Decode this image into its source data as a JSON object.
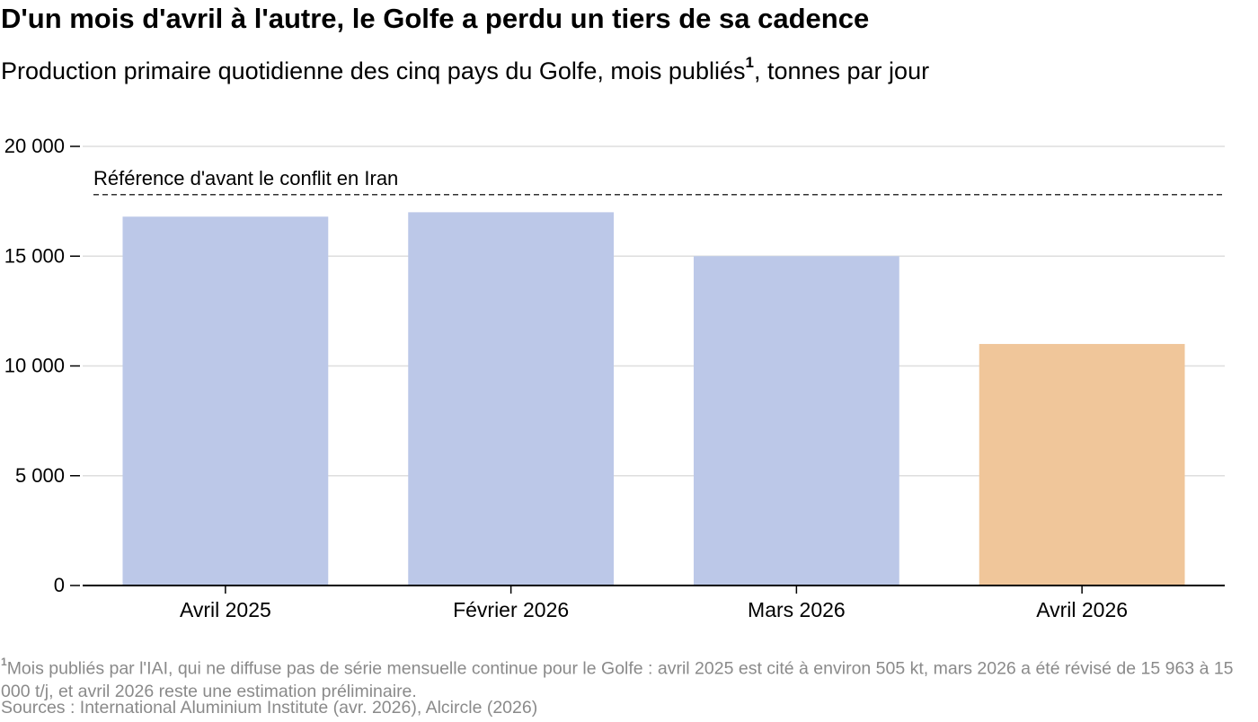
{
  "header": {
    "title": "D'un mois d'avril à l'autre, le Golfe a perdu un tiers de sa cadence",
    "subtitle": "Production primaire quotidienne des cinq pays du Golfe, mois publiés",
    "subtitle_marker": "1",
    "subtitle_unit": ", tonnes par jour"
  },
  "chart_data": {
    "type": "bar",
    "categories": [
      "Avril 2025",
      "Février 2026",
      "Mars 2026",
      "Avril 2026"
    ],
    "values": [
      16800,
      17000,
      15000,
      11000
    ],
    "bar_colors": [
      "#bcc8e8",
      "#bcc8e8",
      "#bcc8e8",
      "#f0c69a"
    ],
    "ylim": [
      0,
      20000
    ],
    "yticks": [
      0,
      5000,
      10000,
      15000,
      20000
    ],
    "ytick_labels": [
      "0",
      "5 000",
      "10 000",
      "15 000",
      "20 000"
    ],
    "grid": true,
    "reference_line": {
      "value": 17800,
      "label": "Référence d'avant le conflit en Iran",
      "style": "dashed"
    },
    "xlabel": "",
    "ylabel": ""
  },
  "footer": {
    "footnote_marker": "1",
    "footnote": "Mois publiés par l'IAI, qui ne diffuse pas de série mensuelle continue pour le Golfe : avril 2025 est cité à environ 505 kt, mars 2026 a été révisé de 15 963 à 15 000 t/j, et avril 2026 reste une estimation préliminaire.",
    "sources": "Sources : International Aluminium Institute (avr. 2026), Alcircle (2026)"
  }
}
